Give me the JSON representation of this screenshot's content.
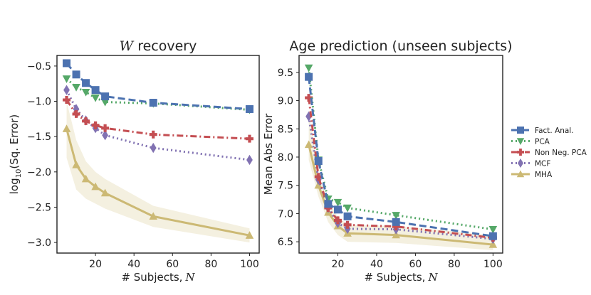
{
  "legend": {
    "entries": [
      {
        "series": "Fact. Anal.",
        "label": "Fact. Anal."
      },
      {
        "series": "PCA",
        "label": "PCA"
      },
      {
        "series": "Non Neg. PCA",
        "label": "Non Neg. PCA"
      },
      {
        "series": "MCF",
        "label": "MCF"
      },
      {
        "series": "MHA",
        "label": "MHA"
      }
    ],
    "placement": "right"
  },
  "styles": {
    "Fact. Anal.": {
      "color": "#4c72b0",
      "dash": "10,5",
      "marker": "square"
    },
    "PCA": {
      "color": "#55a868",
      "dash": "2,4",
      "marker": "triangle-down"
    },
    "Non Neg. PCA": {
      "color": "#c44e52",
      "dash": "9,4,2,4",
      "marker": "plus"
    },
    "MCF": {
      "color": "#8172b2",
      "dash": "2,4",
      "marker": "diamond"
    },
    "MHA": {
      "color": "#ccb974",
      "dash": "",
      "marker": "triangle-up"
    }
  },
  "chart_data": [
    {
      "type": "line",
      "title_italic": "W",
      "title_rest": "recovery",
      "xlabel_prefix": "# Subjects,",
      "xlabel_var": "N",
      "ylabel_pre": "log",
      "ylabel_sub": "10",
      "ylabel_post": "(Sq. Error)",
      "xlim": [
        0,
        105
      ],
      "ylim": [
        -3.15,
        -0.35
      ],
      "xticks": [
        20,
        40,
        60,
        80,
        100
      ],
      "yticks": [
        -3.0,
        -2.5,
        -2.0,
        -1.5,
        -1.0,
        -0.5
      ],
      "ytick_labels": [
        "−3.0",
        "−2.5",
        "−2.0",
        "−1.5",
        "−1.0",
        "−0.5"
      ],
      "x": [
        5,
        10,
        15,
        20,
        25,
        50,
        100
      ],
      "series": [
        {
          "name": "Fact. Anal.",
          "values": [
            -0.46,
            -0.62,
            -0.74,
            -0.84,
            -0.93,
            -1.02,
            -1.11
          ]
        },
        {
          "name": "PCA",
          "values": [
            -0.68,
            -0.8,
            -0.87,
            -0.95,
            -1.01,
            -1.03,
            -1.12
          ]
        },
        {
          "name": "Non Neg. PCA",
          "values": [
            -0.98,
            -1.18,
            -1.28,
            -1.34,
            -1.38,
            -1.47,
            -1.53
          ]
        },
        {
          "name": "MCF",
          "values": [
            -0.84,
            -1.11,
            -1.27,
            -1.38,
            -1.48,
            -1.66,
            -1.83
          ]
        },
        {
          "name": "MHA",
          "values": [
            -1.39,
            -1.9,
            -2.1,
            -2.21,
            -2.3,
            -2.63,
            -2.9
          ]
        }
      ],
      "bands": [
        {
          "series": "MHA",
          "lower": [
            -1.8,
            -2.25,
            -2.38,
            -2.45,
            -2.52,
            -2.78,
            -3.0
          ],
          "upper": [
            -1.0,
            -1.55,
            -1.85,
            -2.0,
            -2.1,
            -2.48,
            -2.8
          ]
        }
      ]
    },
    {
      "type": "line",
      "title": "Age prediction (unseen subjects)",
      "xlabel_prefix": "# Subjects,",
      "xlabel_var": "N",
      "ylabel": "Mean Abs Error",
      "xlim": [
        0,
        105
      ],
      "ylim": [
        6.3,
        9.8
      ],
      "xticks": [
        20,
        40,
        60,
        80,
        100
      ],
      "yticks": [
        6.5,
        7.0,
        7.5,
        8.0,
        8.5,
        9.0,
        9.5
      ],
      "ytick_labels": [
        "6.5",
        "7.0",
        "7.5",
        "8.0",
        "8.5",
        "9.0",
        "9.5"
      ],
      "x": [
        5,
        10,
        15,
        20,
        25,
        50,
        100
      ],
      "series": [
        {
          "name": "Fact. Anal.",
          "values": [
            9.42,
            7.93,
            7.17,
            7.07,
            6.95,
            6.85,
            6.6
          ]
        },
        {
          "name": "PCA",
          "values": [
            9.58,
            7.95,
            7.26,
            7.2,
            7.1,
            6.97,
            6.72
          ]
        },
        {
          "name": "Non Neg. PCA",
          "values": [
            9.05,
            7.65,
            7.1,
            6.88,
            6.8,
            6.77,
            6.57
          ]
        },
        {
          "name": "MCF",
          "values": [
            8.72,
            7.6,
            7.1,
            6.83,
            6.73,
            6.72,
            6.55
          ]
        },
        {
          "name": "MHA",
          "values": [
            8.22,
            7.5,
            7.02,
            6.78,
            6.65,
            6.62,
            6.45
          ]
        }
      ],
      "bands": [
        {
          "series": "MHA",
          "lower": [
            7.95,
            7.3,
            6.85,
            6.62,
            6.5,
            6.48,
            6.35
          ],
          "upper": [
            8.8,
            7.7,
            7.2,
            6.95,
            6.8,
            6.78,
            6.62
          ]
        }
      ]
    }
  ]
}
